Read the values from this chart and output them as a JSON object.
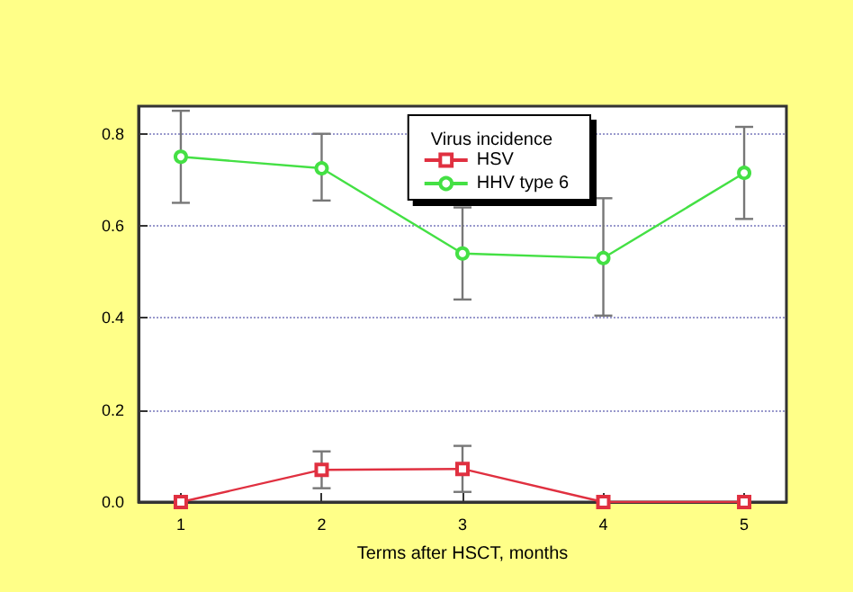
{
  "chart_data": {
    "type": "line",
    "xlabel": "Terms after HSCT, months",
    "legend_title": "Virus incidence",
    "x": [
      1,
      2,
      3,
      4,
      5
    ],
    "series": [
      {
        "name": "HSV",
        "color": "#e03040",
        "marker": "square",
        "values": [
          0,
          0.07,
          0.072,
          0,
          0
        ],
        "errors": [
          null,
          [
            0.03,
            0.11
          ],
          [
            0.022,
            0.122
          ],
          null,
          null
        ]
      },
      {
        "name": "HHV type 6",
        "color": "#44e044",
        "marker": "circle",
        "values": [
          0.75,
          0.725,
          0.54,
          0.53,
          0.715
        ],
        "errors": [
          [
            0.65,
            0.85
          ],
          [
            0.655,
            0.8
          ],
          [
            0.44,
            0.64
          ],
          [
            0.405,
            0.66
          ],
          [
            0.615,
            0.815
          ]
        ]
      }
    ],
    "xlim": [
      0.7,
      5.3
    ],
    "xticks": [
      1,
      2,
      3,
      4,
      5
    ],
    "ylim": [
      0,
      0.86
    ],
    "yticks": [
      {
        "value": 0,
        "label": "0.0"
      },
      {
        "value": 0.2,
        "label": "0.2"
      },
      {
        "value": 0.4,
        "label": "0.4"
      },
      {
        "value": 0.6,
        "label": "0.6"
      },
      {
        "value": 0.8,
        "label": "0.8"
      }
    ],
    "grid": "y",
    "legend": "top right",
    "line_style": "solid"
  }
}
